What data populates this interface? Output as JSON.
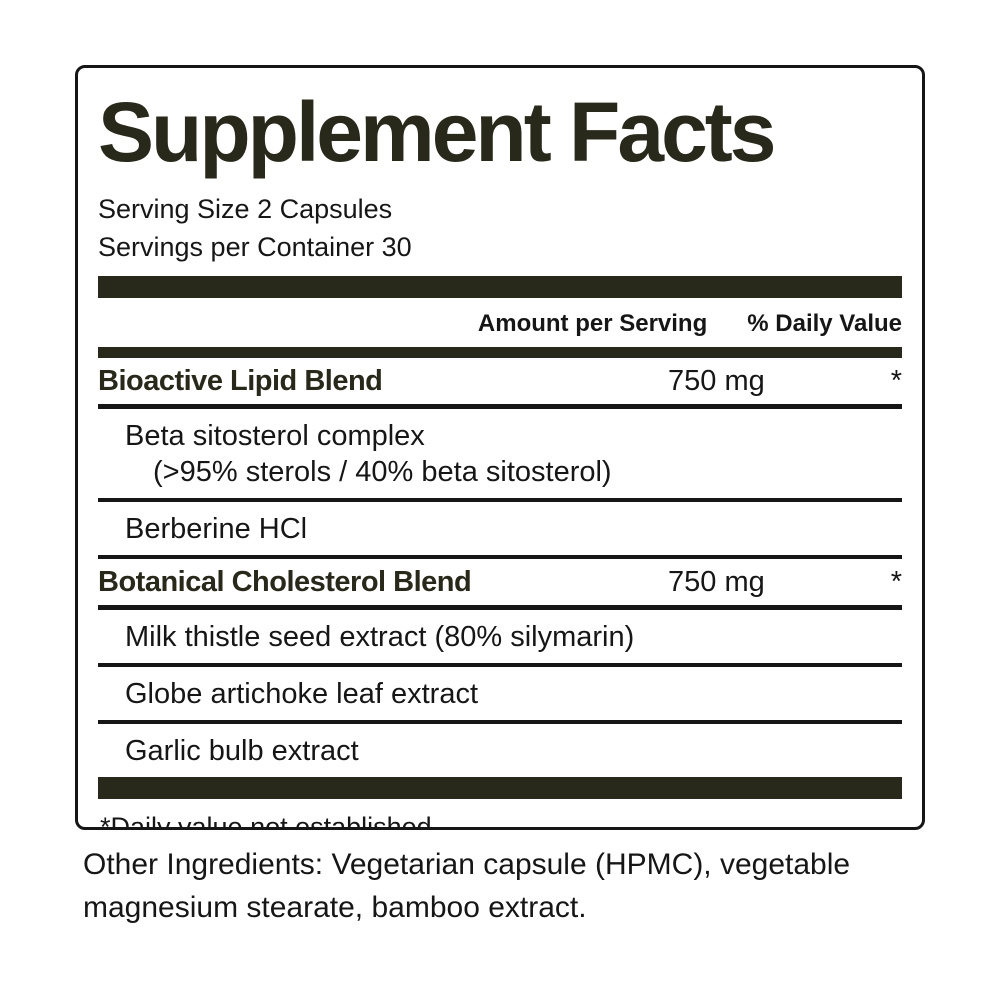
{
  "panel": {
    "title": "Supplement Facts",
    "serving_size": "Serving Size 2 Capsules",
    "servings_per_container": "Servings per Container 30",
    "columns": {
      "amount": "Amount per Serving",
      "daily_value": "% Daily Value"
    },
    "rows": [
      {
        "type": "blend",
        "name": "Bioactive Lipid Blend",
        "amount": "750 mg",
        "daily_value": "*"
      },
      {
        "type": "ingredient",
        "name": "Beta sitosterol complex",
        "detail": "(>95% sterols / 40% beta sitosterol)"
      },
      {
        "type": "ingredient",
        "name": "Berberine HCl"
      },
      {
        "type": "blend",
        "name": "Botanical Cholesterol Blend",
        "amount": "750 mg",
        "daily_value": "*"
      },
      {
        "type": "ingredient",
        "name": "Milk thistle seed extract (80% silymarin)"
      },
      {
        "type": "ingredient",
        "name": "Globe artichoke leaf extract"
      },
      {
        "type": "ingredient",
        "name": "Garlic bulb extract"
      }
    ],
    "footnote": "*Daily value not established."
  },
  "other_ingredients": "Other Ingredients: Vegetarian capsule (HPMC), vegetable magnesium stearate, bamboo extract.",
  "colors": {
    "ink": "#161616",
    "accent_bar": "#28281b"
  }
}
